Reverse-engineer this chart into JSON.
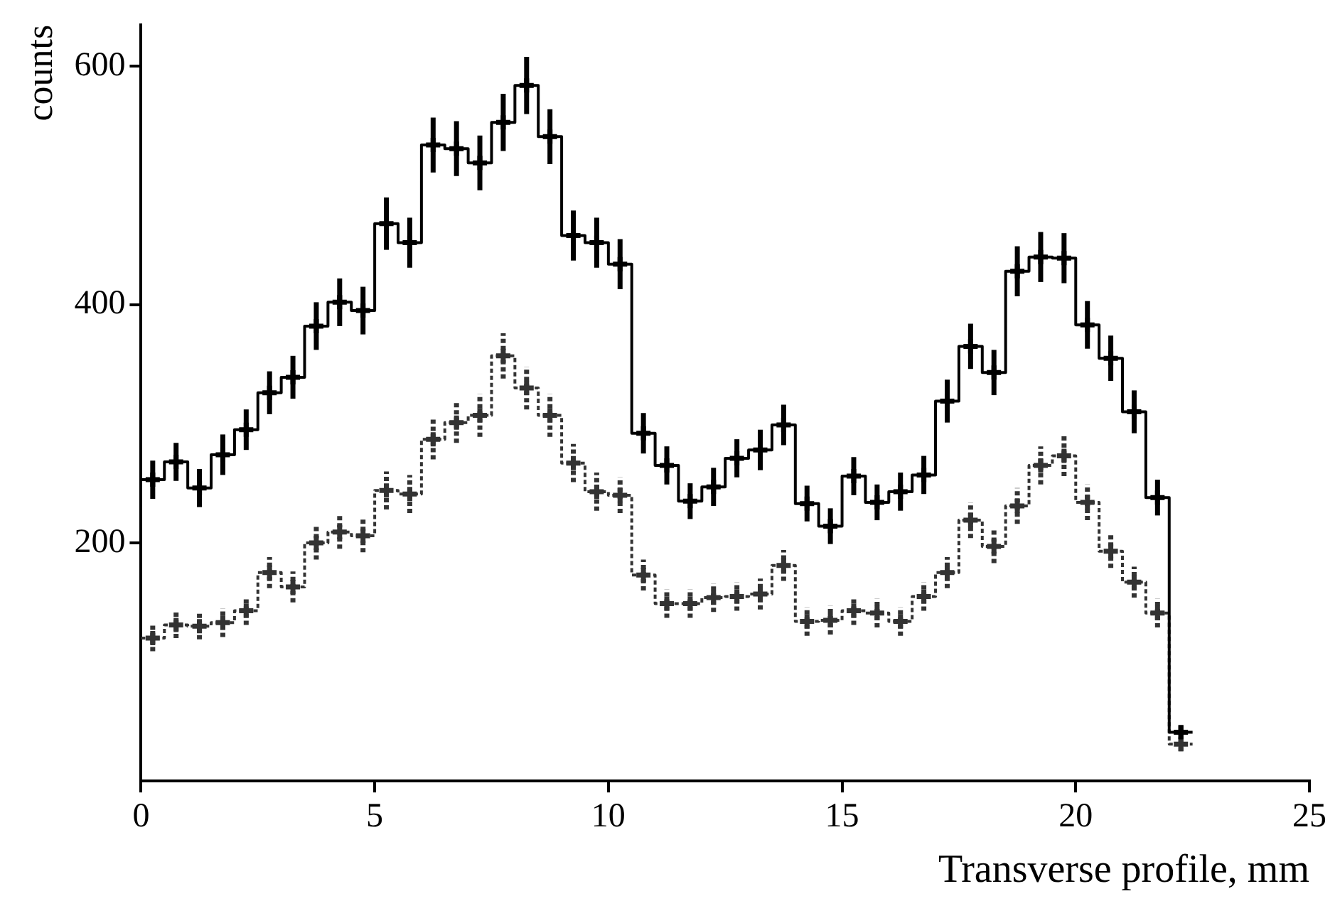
{
  "chart_data": {
    "type": "histogram",
    "xlabel": "Transverse profile, mm",
    "ylabel": "counts",
    "bins": [
      0,
      0.5,
      1,
      1.5,
      2,
      2.5,
      3,
      3.5,
      4,
      4.5,
      5,
      5.5,
      6,
      6.5,
      7,
      7.5,
      8,
      8.5,
      9,
      9.5,
      10,
      10.5,
      11,
      11.5,
      12,
      12.5,
      13,
      13.5,
      14,
      14.5,
      15,
      15.5,
      16,
      16.5,
      17,
      17.5,
      18,
      18.5,
      19,
      19.5,
      20,
      20.5,
      21,
      21.5,
      22,
      22.5
    ],
    "series": [
      {
        "color": "#000000",
        "line_style": "solid",
        "values": [
          253,
          268,
          246,
          274,
          295,
          326,
          339,
          382,
          402,
          395,
          468,
          452,
          534,
          531,
          519,
          553,
          584,
          541,
          458,
          452,
          434,
          292,
          265,
          235,
          247,
          271,
          278,
          299,
          233,
          214,
          256,
          234,
          243,
          257,
          319,
          365,
          343,
          428,
          440,
          439,
          383,
          355,
          310,
          238,
          41
        ]
      },
      {
        "color": "#333333",
        "line_style": "dotted",
        "values": [
          120,
          131,
          130,
          133,
          143,
          175,
          163,
          200,
          209,
          206,
          244,
          241,
          287,
          301,
          307,
          357,
          330,
          307,
          267,
          243,
          240,
          173,
          149,
          149,
          154,
          155,
          157,
          181,
          134,
          135,
          143,
          141,
          134,
          155,
          175,
          219,
          197,
          231,
          265,
          273,
          234,
          193,
          167,
          141,
          31
        ]
      },
      {
        "type": "scatter",
        "marker": "cross",
        "color": "#000000",
        "line_style": "solid",
        "x": [
          0.25,
          0.75,
          1.25,
          1.75,
          2.25,
          2.75,
          3.25,
          3.75,
          4.25,
          4.75,
          5.25,
          5.75,
          6.25,
          6.75,
          7.25,
          7.75,
          8.25,
          8.75,
          9.25,
          9.75,
          10.25,
          10.75,
          11.25,
          11.75,
          12.25,
          12.75,
          13.25,
          13.75,
          14.25,
          14.75,
          15.25,
          15.75,
          16.25,
          16.75,
          17.25,
          17.75,
          18.25,
          18.75,
          19.25,
          19.75,
          20.25,
          20.75,
          21.25,
          21.75,
          22.25
        ],
        "values": [
          253,
          268,
          246,
          274,
          295,
          326,
          339,
          382,
          402,
          395,
          468,
          452,
          534,
          531,
          519,
          553,
          584,
          541,
          458,
          452,
          434,
          292,
          265,
          235,
          247,
          271,
          278,
          299,
          233,
          214,
          256,
          234,
          243,
          257,
          319,
          365,
          343,
          428,
          440,
          439,
          383,
          355,
          310,
          238,
          41
        ],
        "errors": [
          16,
          16,
          16,
          17,
          17,
          18,
          18,
          20,
          20,
          20,
          22,
          21,
          23,
          23,
          23,
          24,
          24,
          23,
          21,
          21,
          21,
          17,
          16,
          15,
          16,
          16,
          17,
          17,
          15,
          15,
          16,
          15,
          16,
          16,
          18,
          19,
          19,
          21,
          21,
          21,
          20,
          19,
          18,
          15,
          6
        ]
      },
      {
        "type": "scatter",
        "marker": "cross",
        "color": "#333333",
        "line_style": "dotted",
        "x": [
          0.25,
          0.75,
          1.25,
          1.75,
          2.25,
          2.75,
          3.25,
          3.75,
          4.25,
          4.75,
          5.25,
          5.75,
          6.25,
          6.75,
          7.25,
          7.75,
          8.25,
          8.75,
          9.25,
          9.75,
          10.25,
          10.75,
          11.25,
          11.75,
          12.25,
          12.75,
          13.25,
          13.75,
          14.25,
          14.75,
          15.25,
          15.75,
          16.25,
          16.75,
          17.25,
          17.75,
          18.25,
          18.75,
          19.25,
          19.75,
          20.25,
          20.75,
          21.25,
          21.75,
          22.25
        ],
        "values": [
          120,
          131,
          130,
          133,
          143,
          175,
          163,
          200,
          209,
          206,
          244,
          241,
          287,
          301,
          307,
          357,
          330,
          307,
          267,
          243,
          240,
          173,
          149,
          149,
          154,
          155,
          157,
          181,
          134,
          135,
          143,
          141,
          134,
          155,
          175,
          219,
          197,
          231,
          265,
          273,
          234,
          193,
          167,
          141,
          31
        ],
        "errors": [
          11,
          11,
          11,
          12,
          12,
          13,
          13,
          14,
          14,
          14,
          16,
          16,
          17,
          17,
          18,
          19,
          18,
          18,
          16,
          16,
          15,
          13,
          12,
          12,
          12,
          12,
          13,
          13,
          12,
          12,
          12,
          12,
          12,
          12,
          13,
          15,
          14,
          15,
          16,
          17,
          15,
          14,
          13,
          12,
          6
        ]
      }
    ],
    "xlim": [
      0,
      25
    ],
    "xticks": [
      0,
      5,
      10,
      15,
      20,
      25
    ],
    "ylim": [
      0,
      635
    ],
    "yticks": [
      200,
      400,
      600
    ],
    "grid": false,
    "legend": false
  }
}
